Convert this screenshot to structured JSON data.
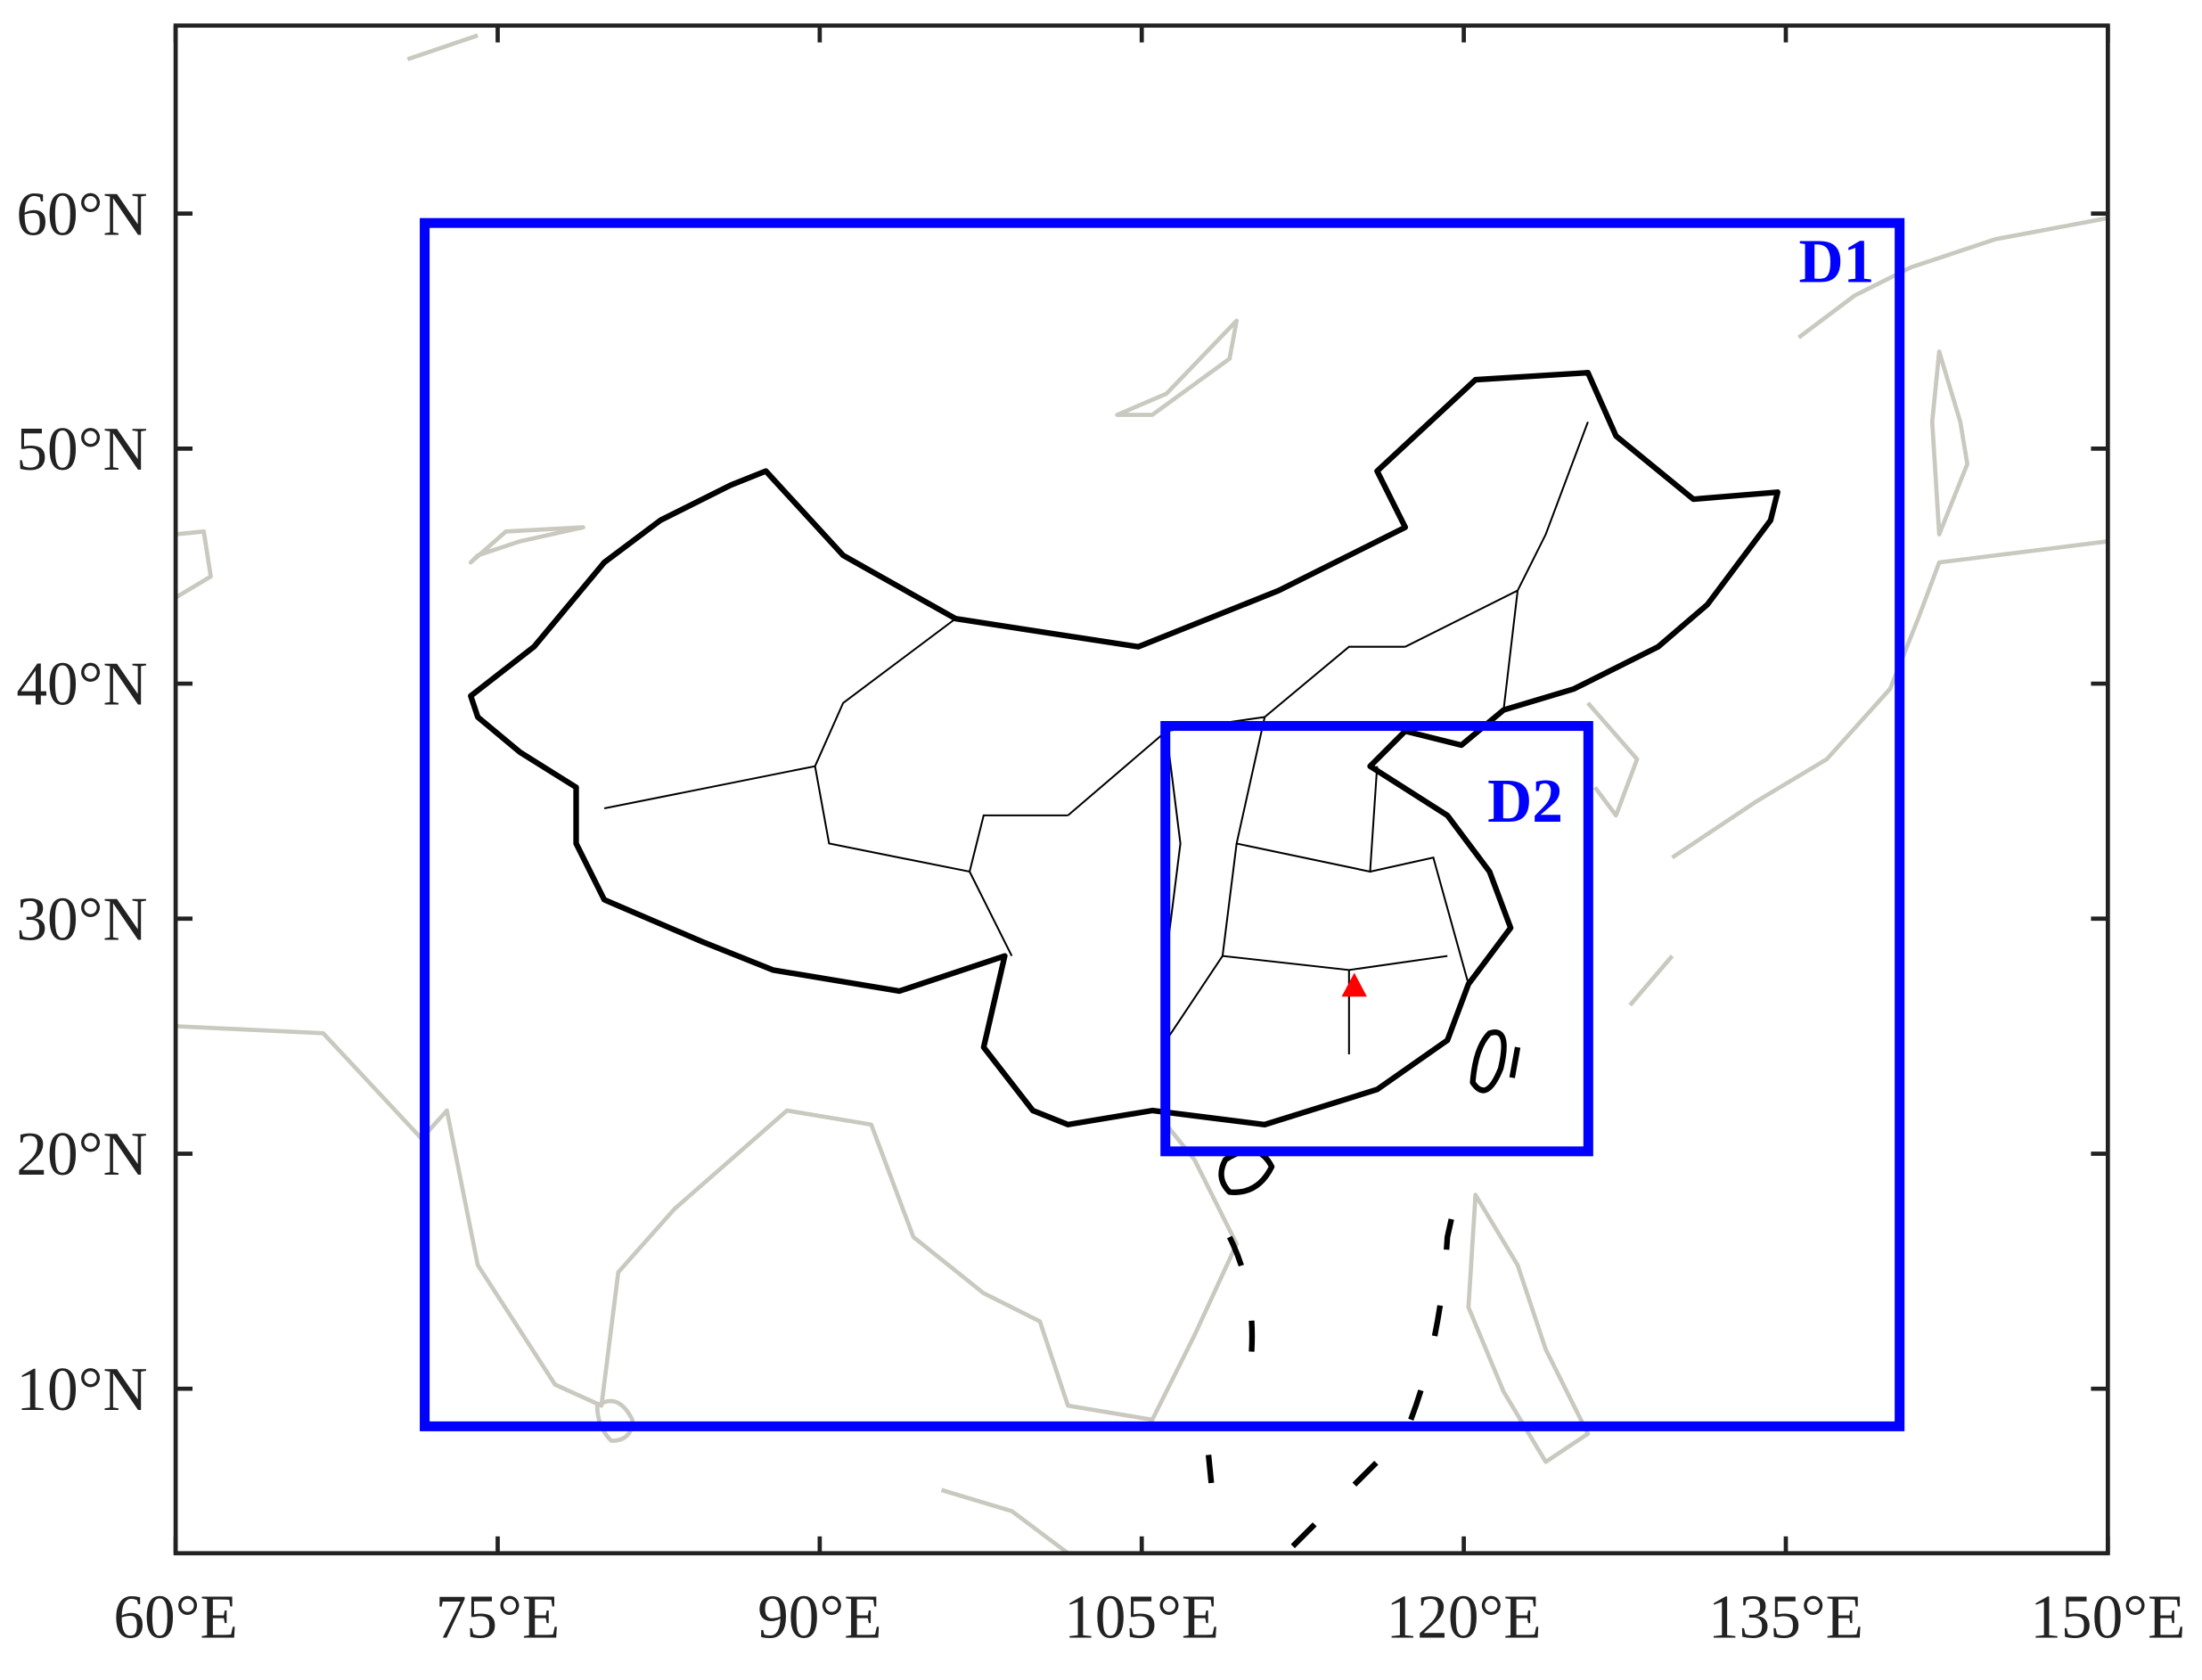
{
  "chart_data": {
    "type": "map",
    "xlim": [
      60,
      150
    ],
    "ylim": [
      3,
      68
    ],
    "xticks": [
      {
        "value": 60,
        "label": "60°E"
      },
      {
        "value": 75,
        "label": "75°E"
      },
      {
        "value": 90,
        "label": "90°E"
      },
      {
        "value": 105,
        "label": "105°E"
      },
      {
        "value": 120,
        "label": "120°E"
      },
      {
        "value": 135,
        "label": "135°E"
      },
      {
        "value": 150,
        "label": "150°E"
      }
    ],
    "yticks": [
      {
        "value": 10,
        "label": "10°N"
      },
      {
        "value": 20,
        "label": "20°N"
      },
      {
        "value": 30,
        "label": "30°N"
      },
      {
        "value": 40,
        "label": "40°N"
      },
      {
        "value": 50,
        "label": "50°N"
      },
      {
        "value": 60,
        "label": "60°N"
      }
    ],
    "domains": [
      {
        "name": "D1",
        "lon": [
          71.6,
          140.3
        ],
        "lat": [
          8.4,
          59.6
        ],
        "color": "#0000ff"
      },
      {
        "name": "D2",
        "lon": [
          106.1,
          125.8
        ],
        "lat": [
          20.1,
          38.2
        ],
        "color": "#0000ff"
      }
    ],
    "site": {
      "lon": 114.9,
      "lat": 27.1,
      "color": "#ff0000"
    }
  }
}
